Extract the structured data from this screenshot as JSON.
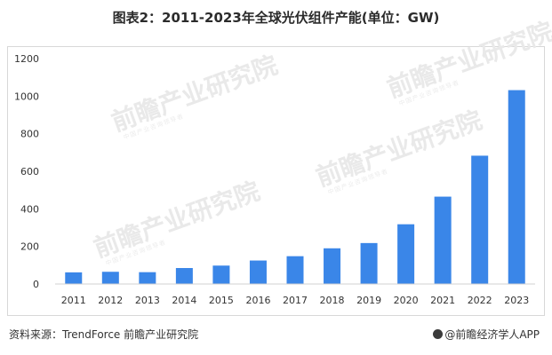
{
  "header": {
    "title": "图表2：2011-2023年全球光伏组件产能(单位：GW)"
  },
  "footer": {
    "source": "资料来源：TrendForce 前瞻产业研究院",
    "brand": "@前瞻经济学人APP"
  },
  "watermark": {
    "text": "前瞻产业研究院",
    "sub": "中国产业咨询领导者"
  },
  "colors": {
    "bar": "#3a86e8",
    "axis": "#d0d0d0",
    "text": "#333333"
  },
  "chart_data": {
    "type": "bar",
    "title": "图表2：2011-2023年全球光伏组件产能(单位：GW)",
    "xlabel": "",
    "ylabel": "",
    "categories": [
      "2011",
      "2012",
      "2013",
      "2014",
      "2015",
      "2016",
      "2017",
      "2018",
      "2019",
      "2020",
      "2021",
      "2022",
      "2023"
    ],
    "values": [
      62,
      65,
      63,
      85,
      98,
      125,
      148,
      190,
      218,
      318,
      465,
      683,
      1032
    ],
    "ylim": [
      0,
      1200
    ],
    "yticks": [
      0,
      200,
      400,
      600,
      800,
      1000,
      1200
    ],
    "grid": false,
    "legend": "none"
  }
}
